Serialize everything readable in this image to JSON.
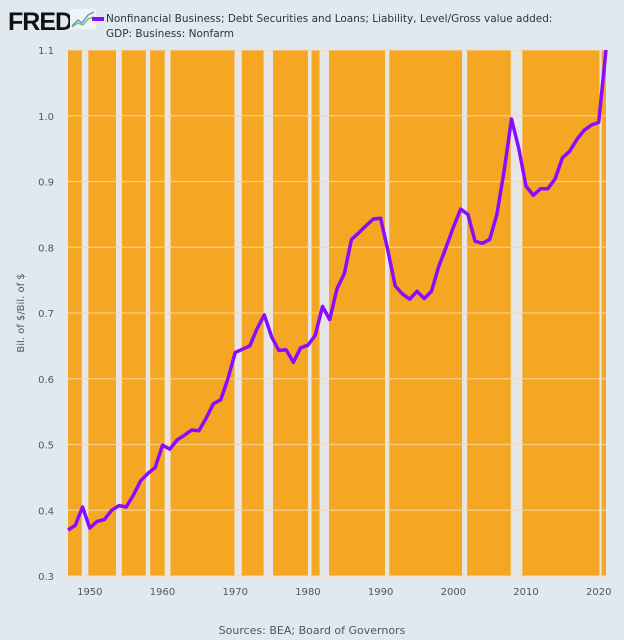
{
  "header": {
    "logo": "FRED",
    "logo_icon": "chart-line-icon"
  },
  "sources": "Sources: BEA; Board of Governors",
  "colors": {
    "background": "#e1e9f0",
    "plot_fill": "#f5a623",
    "recession_band": "#e6e6e6",
    "series": "#8a0cff"
  },
  "chart_data": {
    "type": "line",
    "title": "",
    "ylabel": "Bil. of $/Bil. of $",
    "xlabel": "",
    "xlim": [
      1947,
      2021
    ],
    "ylim": [
      0.3,
      1.1
    ],
    "grid": true,
    "legend_placement": "top",
    "x_ticks": [
      "1950",
      "1960",
      "1970",
      "1980",
      "1990",
      "2000",
      "2010",
      "2020"
    ],
    "y_ticks": [
      "0.3",
      "0.4",
      "0.5",
      "0.6",
      "0.7",
      "0.8",
      "0.9",
      "1.0",
      "1.1"
    ],
    "shaded_periods": [
      [
        1948.9,
        1949.8
      ],
      [
        1953.6,
        1954.4
      ],
      [
        1957.7,
        1958.3
      ],
      [
        1960.3,
        1961.1
      ],
      [
        1969.9,
        1970.9
      ],
      [
        1973.9,
        1975.2
      ],
      [
        1980.0,
        1980.5
      ],
      [
        1981.6,
        1982.9
      ],
      [
        1990.6,
        1991.2
      ],
      [
        2001.2,
        2001.9
      ],
      [
        2007.9,
        2009.5
      ],
      [
        2020.1,
        2020.4
      ]
    ],
    "series": [
      {
        "name": "Nonfinancial Business; Debt Securities and Loans; Liability, Level/Gross value added: GDP: Business: Nonfarm",
        "x": [
          1947,
          1948,
          1949,
          1950,
          1951,
          1952,
          1953,
          1954,
          1955,
          1956,
          1957,
          1958,
          1959,
          1960,
          1961,
          1962,
          1963,
          1964,
          1965,
          1966,
          1967,
          1968,
          1969,
          1970,
          1971,
          1972,
          1973,
          1974,
          1975,
          1976,
          1977,
          1978,
          1979,
          1980,
          1981,
          1982,
          1983,
          1984,
          1985,
          1986,
          1987,
          1988,
          1989,
          1990,
          1991,
          1992,
          1993,
          1994,
          1995,
          1996,
          1997,
          1998,
          1999,
          2000,
          2001,
          2002,
          2003,
          2004,
          2005,
          2006,
          2007,
          2008,
          2009,
          2010,
          2011,
          2012,
          2013,
          2014,
          2015,
          2016,
          2017,
          2018,
          2019,
          2020,
          2021
        ],
        "values": [
          0.37,
          0.377,
          0.405,
          0.373,
          0.383,
          0.386,
          0.4,
          0.407,
          0.405,
          0.423,
          0.445,
          0.456,
          0.465,
          0.499,
          0.493,
          0.507,
          0.514,
          0.522,
          0.521,
          0.54,
          0.562,
          0.568,
          0.6,
          0.64,
          0.645,
          0.65,
          0.676,
          0.697,
          0.664,
          0.643,
          0.644,
          0.625,
          0.647,
          0.651,
          0.666,
          0.71,
          0.69,
          0.737,
          0.76,
          0.812,
          0.822,
          0.833,
          0.843,
          0.844,
          0.795,
          0.741,
          0.729,
          0.721,
          0.733,
          0.722,
          0.733,
          0.771,
          0.8,
          0.83,
          0.858,
          0.85,
          0.809,
          0.806,
          0.812,
          0.85,
          0.917,
          0.995,
          0.95,
          0.893,
          0.879,
          0.889,
          0.889,
          0.904,
          0.936,
          0.946,
          0.964,
          0.978,
          0.986,
          0.99,
          1.1
        ]
      }
    ]
  }
}
